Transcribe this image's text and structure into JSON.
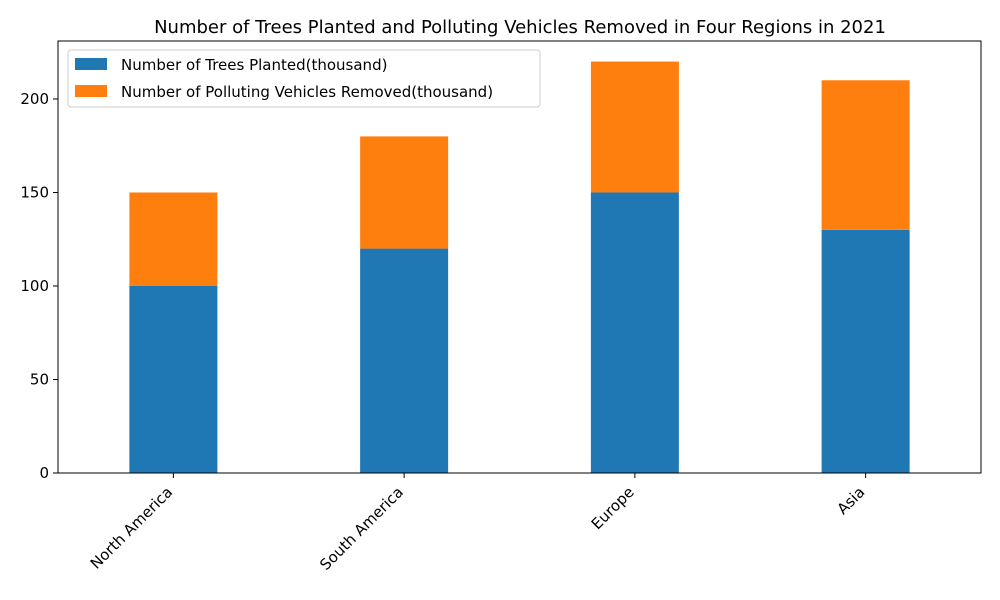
{
  "chart_data": {
    "type": "bar",
    "stacked": true,
    "title": "Number of Trees Planted and Polluting Vehicles Removed in Four Regions in 2021",
    "xlabel": "",
    "ylabel": "",
    "categories": [
      "North America",
      "South America",
      "Europe",
      "Asia"
    ],
    "series": [
      {
        "name": "Number of Trees Planted(thousand)",
        "values": [
          100,
          120,
          150,
          130
        ],
        "color": "#1f77b4"
      },
      {
        "name": "Number of Polluting Vehicles Removed(thousand)",
        "values": [
          50,
          60,
          70,
          80
        ],
        "color": "#ff7f0e"
      }
    ],
    "ylim": [
      0,
      231
    ],
    "yticks": [
      0,
      50,
      100,
      150,
      200
    ],
    "xtick_rotation": 45,
    "grid": false,
    "legend_position": "top-left"
  }
}
